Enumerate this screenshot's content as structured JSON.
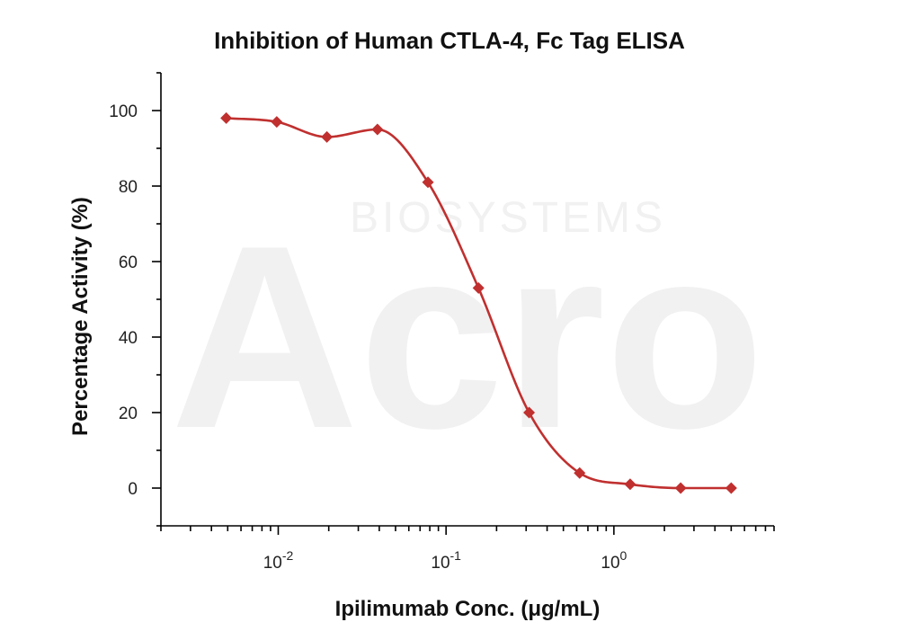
{
  "chart_data": {
    "type": "scatter",
    "title": "Inhibition of Human CTLA-4, Fc Tag ELISA",
    "xlabel": "Ipilimumab Conc. (μg/mL)",
    "ylabel": "Percentage Activity (%)",
    "xscale": "log",
    "xlim": [
      0.002,
      9
    ],
    "ylim": [
      -10,
      110
    ],
    "yticks": [
      0,
      20,
      40,
      60,
      80,
      100
    ],
    "xticks": [
      {
        "value": 0.01,
        "base": "10",
        "exp": "-2"
      },
      {
        "value": 0.1,
        "base": "10",
        "exp": "-1"
      },
      {
        "value": 1,
        "base": "10",
        "exp": "0"
      }
    ],
    "series": [
      {
        "color": "#c0302f",
        "x": [
          0.0049,
          0.0098,
          0.0195,
          0.039,
          0.078,
          0.156,
          0.3125,
          0.625,
          1.25,
          2.5,
          5.0
        ],
        "y": [
          98,
          97,
          93,
          95,
          81,
          53,
          20,
          4,
          1,
          0,
          0
        ],
        "fit_line": true
      }
    ],
    "watermark": {
      "main": "Acro",
      "sub": "BIOSYSTEMS"
    }
  }
}
